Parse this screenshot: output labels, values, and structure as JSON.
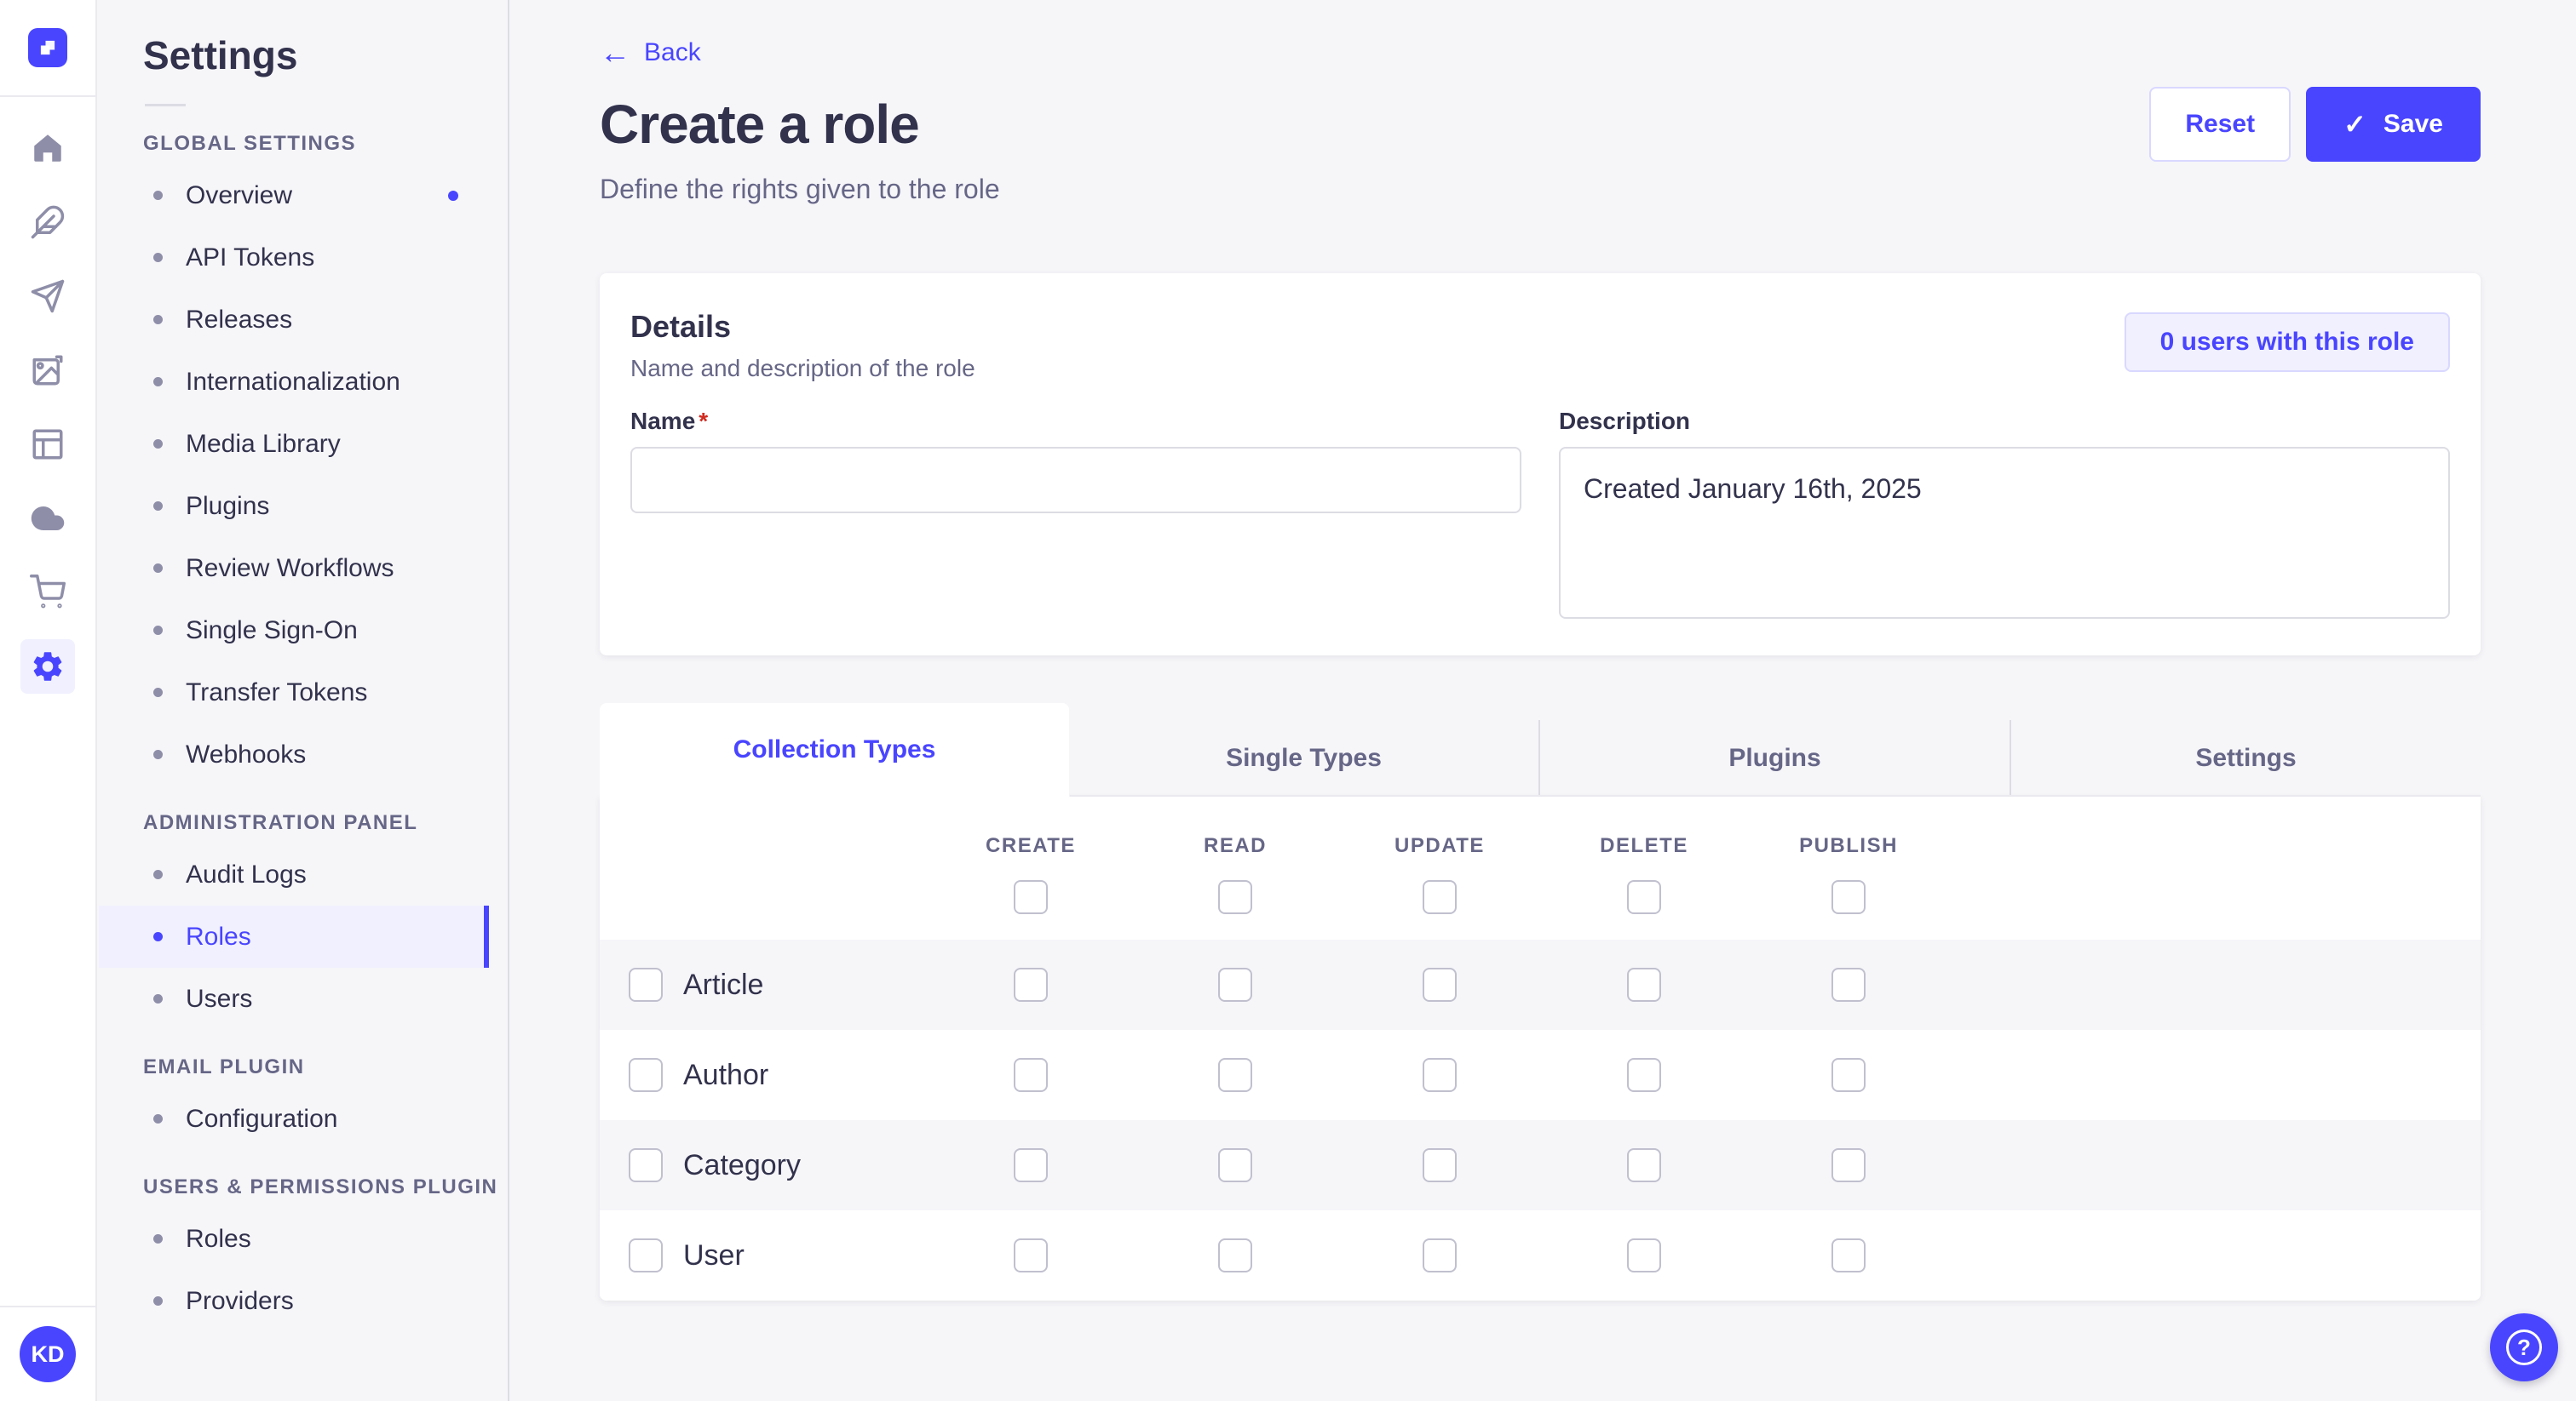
{
  "colors": {
    "primary": "#4945FF",
    "primary_light": "#F0F0FF",
    "primary_border": "#D9D8FF",
    "page_background": "#F6F6F9",
    "text": "#32324D",
    "muted_text": "#666687",
    "required_marker_color": "#D02B20"
  },
  "rail": {
    "logo_icon": "strapi-logo-icon",
    "icons": [
      {
        "name": "home-icon",
        "active": false
      },
      {
        "name": "feather-icon",
        "active": false
      },
      {
        "name": "paper-plane-icon",
        "active": false
      },
      {
        "name": "media-library-icon",
        "active": false
      },
      {
        "name": "layout-icon",
        "active": false
      },
      {
        "name": "cloud-icon",
        "active": false
      },
      {
        "name": "marketplace-cart-icon",
        "active": false
      },
      {
        "name": "settings-gear-icon",
        "active": true
      }
    ],
    "avatar_initials": "KD"
  },
  "sidebar": {
    "title": "Settings",
    "sections": [
      {
        "label": "GLOBAL SETTINGS",
        "items": [
          {
            "label": "Overview",
            "active": false,
            "dot": true
          },
          {
            "label": "API Tokens",
            "active": false,
            "dot": false
          },
          {
            "label": "Releases",
            "active": false,
            "dot": false
          },
          {
            "label": "Internationalization",
            "active": false,
            "dot": false
          },
          {
            "label": "Media Library",
            "active": false,
            "dot": false
          },
          {
            "label": "Plugins",
            "active": false,
            "dot": false
          },
          {
            "label": "Review Workflows",
            "active": false,
            "dot": false
          },
          {
            "label": "Single Sign-On",
            "active": false,
            "dot": false
          },
          {
            "label": "Transfer Tokens",
            "active": false,
            "dot": false
          },
          {
            "label": "Webhooks",
            "active": false,
            "dot": false
          }
        ]
      },
      {
        "label": "ADMINISTRATION PANEL",
        "items": [
          {
            "label": "Audit Logs",
            "active": false,
            "dot": false
          },
          {
            "label": "Roles",
            "active": true,
            "dot": false
          },
          {
            "label": "Users",
            "active": false,
            "dot": false
          }
        ]
      },
      {
        "label": "EMAIL PLUGIN",
        "items": [
          {
            "label": "Configuration",
            "active": false,
            "dot": false
          }
        ]
      },
      {
        "label": "USERS & PERMISSIONS PLUGIN",
        "items": [
          {
            "label": "Roles",
            "active": false,
            "dot": false
          },
          {
            "label": "Providers",
            "active": false,
            "dot": false
          }
        ]
      }
    ]
  },
  "header": {
    "back": "Back",
    "back_icon": "left-arrow-icon",
    "title": "Create a role",
    "subtitle": "Define the rights given to the role",
    "reset_label": "Reset",
    "save_label": "Save",
    "save_check_icon": "✓"
  },
  "details": {
    "heading": "Details",
    "subheading": "Name and description of the role",
    "users_button_label": "0 users with this role",
    "name_label": "Name",
    "required_marker": "*",
    "name_value": "",
    "description_label": "Description",
    "description_value": "Created January 16th, 2025"
  },
  "tabs": [
    {
      "label": "Collection Types",
      "active": true
    },
    {
      "label": "Single Types",
      "active": false
    },
    {
      "label": "Plugins",
      "active": false
    },
    {
      "label": "Settings",
      "active": false
    }
  ],
  "permissions": {
    "columns": [
      "CREATE",
      "READ",
      "UPDATE",
      "DELETE",
      "PUBLISH"
    ],
    "rows": [
      "Article",
      "Author",
      "Category",
      "User"
    ],
    "all_checkboxes_checked": false
  },
  "help": {
    "icon": "circled-question-mark-icon"
  }
}
